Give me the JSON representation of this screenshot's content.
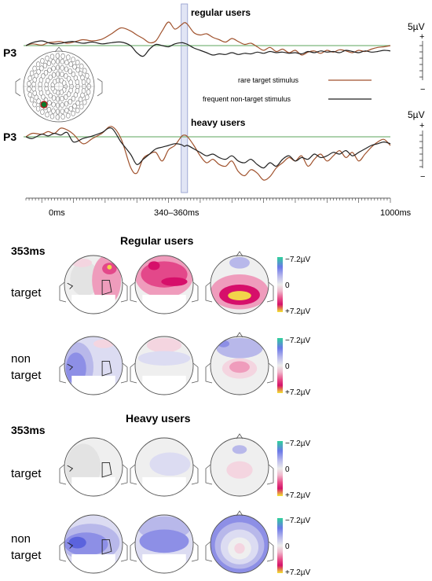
{
  "chart_data": [
    {
      "type": "line",
      "title": "regular users",
      "channel_label": "P3",
      "scale_label": "5µV",
      "scale_plus": "+",
      "scale_minus": "−",
      "legend": [
        {
          "label": "rare target stimulus",
          "color": "#a0522d"
        },
        {
          "label": "frequent non-target stimulus",
          "color": "#222222"
        }
      ],
      "baseline_color": "#7cb87c",
      "x_ticks": [
        "0ms",
        "1000ms"
      ],
      "window_label": "340–360ms",
      "xlim": [
        -150,
        1000
      ],
      "window": [
        340,
        360
      ],
      "series": [
        {
          "name": "rare target stimulus",
          "color": "#a0522d",
          "x": [
            -150,
            -130,
            -100,
            -80,
            -60,
            -40,
            -20,
            0,
            30,
            60,
            90,
            120,
            150,
            180,
            200,
            220,
            240,
            260,
            280,
            300,
            320,
            340,
            350,
            360,
            380,
            400,
            420,
            440,
            460,
            480,
            500,
            520,
            540,
            560,
            580,
            600,
            620,
            640,
            660,
            680,
            700,
            720,
            740,
            760,
            780,
            800,
            820,
            840,
            860,
            880,
            900,
            920,
            940,
            960,
            980,
            1000
          ],
          "y": [
            0.0,
            0.3,
            0.1,
            0.5,
            0.6,
            0.7,
            0.4,
            0.6,
            1.0,
            0.8,
            1.1,
            2.0,
            3.0,
            2.5,
            1.8,
            1.2,
            0.5,
            0.8,
            2.5,
            4.0,
            2.8,
            3.5,
            3.9,
            3.6,
            2.2,
            1.8,
            2.0,
            1.4,
            1.0,
            0.6,
            1.2,
            0.7,
            0.2,
            0.4,
            -0.2,
            -0.8,
            -0.3,
            -1.0,
            -0.6,
            -1.2,
            -0.8,
            -1.6,
            -1.1,
            -0.9,
            -1.3,
            -0.8,
            -1.1,
            -0.7,
            -0.9,
            -1.2,
            -0.8,
            -1.0,
            -0.6,
            -0.3,
            -0.2,
            0.0
          ]
        },
        {
          "name": "frequent non-target stimulus",
          "color": "#222222",
          "x": [
            -150,
            -130,
            -100,
            -80,
            -60,
            -40,
            -20,
            0,
            30,
            60,
            90,
            120,
            150,
            180,
            200,
            220,
            240,
            260,
            280,
            300,
            320,
            340,
            350,
            360,
            380,
            400,
            420,
            440,
            460,
            480,
            500,
            520,
            540,
            560,
            580,
            600,
            620,
            640,
            660,
            680,
            700,
            720,
            740,
            760,
            780,
            800,
            820,
            840,
            860,
            880,
            900,
            920,
            940,
            960,
            980,
            1000
          ],
          "y": [
            0.0,
            0.5,
            0.8,
            0.5,
            0.3,
            0.4,
            0.6,
            0.7,
            0.4,
            0.6,
            0.3,
            0.5,
            0.6,
            0.0,
            -1.2,
            -1.8,
            -0.6,
            0.2,
            0.0,
            -0.2,
            0.3,
            0.5,
            0.4,
            0.2,
            -0.4,
            -0.8,
            -1.2,
            -1.6,
            -1.4,
            -1.5,
            -1.2,
            -1.5,
            -1.3,
            -1.4,
            -1.1,
            -1.3,
            -1.0,
            -1.2,
            -1.1,
            -1.3,
            -1.2,
            -1.4,
            -1.0,
            -1.2,
            -0.9,
            -1.1,
            -1.0,
            -1.2,
            -0.8,
            -1.0,
            -1.2,
            -0.9,
            -1.1,
            -1.0,
            -0.8,
            -0.9
          ]
        }
      ]
    },
    {
      "type": "line",
      "title": "heavy users",
      "channel_label": "P3",
      "scale_label": "5µV",
      "scale_plus": "+",
      "scale_minus": "−",
      "baseline_color": "#7cb87c",
      "xlim": [
        -150,
        1000
      ],
      "window": [
        340,
        360
      ],
      "series": [
        {
          "name": "rare target stimulus",
          "color": "#a0522d",
          "x": [
            -150,
            -130,
            -100,
            -80,
            -60,
            -40,
            -20,
            0,
            30,
            60,
            90,
            120,
            150,
            180,
            200,
            220,
            240,
            260,
            280,
            300,
            320,
            340,
            350,
            360,
            380,
            400,
            420,
            440,
            460,
            480,
            500,
            520,
            540,
            560,
            580,
            600,
            620,
            640,
            660,
            680,
            700,
            720,
            740,
            760,
            780,
            800,
            820,
            840,
            860,
            880,
            900,
            920,
            940,
            960,
            980,
            1000
          ],
          "y": [
            0.0,
            0.4,
            0.3,
            0.6,
            0.4,
            1.0,
            0.8,
            0.3,
            -0.8,
            -0.2,
            0.4,
            1.2,
            -0.2,
            -3.5,
            -4.2,
            -2.5,
            -2.0,
            -1.8,
            -2.8,
            -1.5,
            -1.0,
            0.0,
            0.2,
            0.0,
            -1.0,
            -2.2,
            -3.0,
            -2.6,
            -3.2,
            -3.4,
            -2.8,
            -4.0,
            -4.5,
            -3.8,
            -4.2,
            -5.0,
            -4.6,
            -3.6,
            -3.0,
            -2.4,
            -2.8,
            -2.2,
            -3.4,
            -2.6,
            -2.0,
            -2.8,
            -2.2,
            -1.6,
            -2.4,
            -1.8,
            -2.8,
            -2.0,
            -1.2,
            -0.6,
            -0.3,
            -1.0
          ]
        },
        {
          "name": "frequent non-target stimulus",
          "color": "#222222",
          "x": [
            -150,
            -130,
            -100,
            -80,
            -60,
            -40,
            -20,
            0,
            30,
            60,
            90,
            120,
            150,
            180,
            200,
            220,
            240,
            260,
            280,
            300,
            320,
            340,
            350,
            360,
            380,
            400,
            420,
            440,
            460,
            480,
            500,
            520,
            540,
            560,
            580,
            600,
            620,
            640,
            660,
            680,
            700,
            720,
            740,
            760,
            780,
            800,
            820,
            840,
            860,
            880,
            900,
            920,
            940,
            960,
            980,
            1000
          ],
          "y": [
            0.0,
            -0.2,
            0.3,
            0.1,
            0.4,
            0.2,
            0.5,
            -0.6,
            -0.2,
            0.1,
            0.5,
            1.0,
            -0.6,
            -2.0,
            -3.2,
            -2.6,
            -2.0,
            -1.4,
            -1.2,
            -1.0,
            -0.8,
            -0.9,
            -1.1,
            -1.0,
            -1.4,
            -1.8,
            -2.2,
            -2.0,
            -2.4,
            -2.6,
            -2.2,
            -2.8,
            -3.0,
            -2.6,
            -3.2,
            -3.6,
            -3.0,
            -3.4,
            -2.6,
            -2.2,
            -2.8,
            -2.4,
            -2.6,
            -2.0,
            -2.4,
            -2.2,
            -1.8,
            -2.0,
            -1.6,
            -2.2,
            -1.8,
            -1.4,
            -1.0,
            -0.8,
            -0.6,
            -0.8
          ]
        }
      ]
    },
    {
      "type": "heatmap",
      "title": "Regular users",
      "time_label": "353ms",
      "scale_max": "−7.2µV",
      "scale_mid": "0",
      "scale_min": "+7.2µV",
      "rows": [
        {
          "label_lines": [
            "target"
          ],
          "maps": [
            "left-strong",
            "top-strong",
            "back-strong"
          ]
        },
        {
          "label_lines": [
            "non",
            "target"
          ],
          "maps": [
            "left-blue",
            "neutral-top",
            "back-mild"
          ]
        }
      ]
    },
    {
      "type": "heatmap",
      "title": "Heavy users",
      "time_label": "353ms",
      "scale_max": "−7.2µV",
      "scale_mid": "0",
      "scale_min": "+7.2µV",
      "rows": [
        {
          "label_lines": [
            "target"
          ],
          "maps": [
            "left-grey",
            "neutral-grey",
            "back-faint"
          ]
        },
        {
          "label_lines": [
            "non",
            "target"
          ],
          "maps": [
            "left-blue-strong",
            "top-blue",
            "back-blue"
          ]
        }
      ]
    }
  ]
}
